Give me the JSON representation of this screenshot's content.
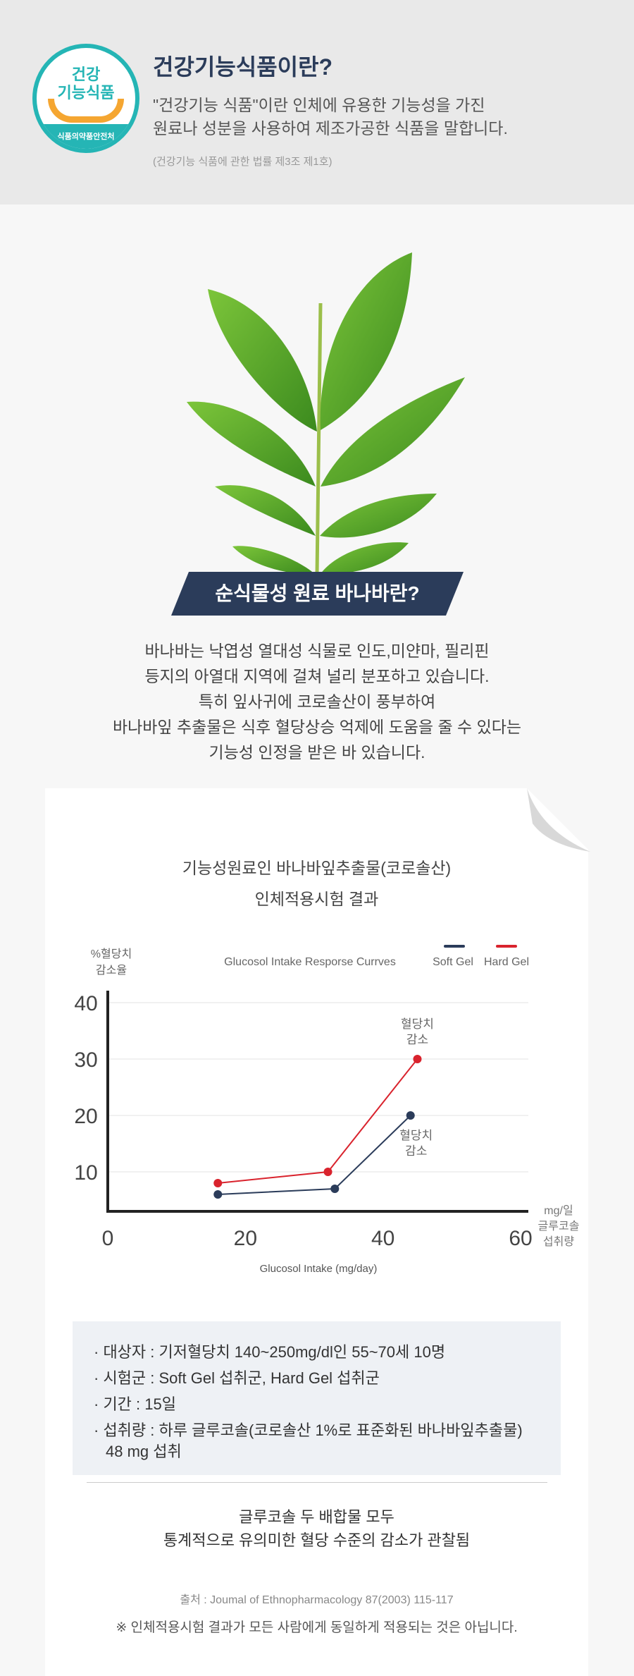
{
  "header": {
    "logo": {
      "line1": "건강",
      "line2": "기능식품",
      "band": "식품의약품안전처"
    },
    "title": "건강기능식품이란?",
    "body": [
      "\"건강기능 식품\"이란 인체에 유용한 기능성을 가진",
      "원료나 성분을 사용하여 제조가공한 식품을 말합니다."
    ],
    "source": "(건강기능 식품에 관한 법률 제3조 제1호)"
  },
  "ingredient": {
    "banner": "순식물성 원료 바나바란?",
    "paragraph": [
      "바나바는  낙엽성 열대성 식물로 인도,미얀마, 필리핀",
      "등지의 아열대 지역에 걸쳐 널리 분포하고 있습니다.",
      "특히 잎사귀에 코로솔산이 풍부하여",
      "바나바잎 추출물은 식후 혈당상승 억제에 도움을 줄 수 있다는",
      "기능성 인정을 받은 바 있습니다."
    ]
  },
  "card": {
    "title": [
      "기능성원료인 바나바잎추출물(코로솔산)",
      "인체적용시험 결과"
    ],
    "info": [
      "· 대상자 : 기저혈당치 140~250mg/dl인 55~70세 10명",
      "· 시험군 : Soft Gel 섭취군, Hard Gel 섭취군",
      "· 기간 : 15일",
      "· 섭취량 : 하루 글루코솔(코로솔산 1%로 표준화된 바나바잎추출물)",
      "48 mg 섭취"
    ],
    "conclusion": [
      "글루코솔 두 배합물 모두",
      "통계적으로 유의미한 혈당 수준의 감소가 관찰됨"
    ],
    "source": "출처 : Joumal of Ethnopharmacology 87(2003) 115-117",
    "disclaimer": "※ 인체적용시험 결과가 모든 사람에게 동일하게 적용되는 것은 아닙니다."
  },
  "colors": {
    "navy": "#2b3c5a",
    "red": "#d9232d",
    "teal": "#25b5b5",
    "orange": "#f5a631"
  },
  "chart_data": {
    "type": "line",
    "title": "Glucosol Intake Resporse Currves",
    "ylabel": [
      "%혈당치",
      "감소율"
    ],
    "xlabel": "Glucosol Intake (mg/day)",
    "xunit": [
      "mg/일",
      "글루코솔",
      "섭취량"
    ],
    "xlim": [
      0,
      60
    ],
    "ylim": [
      3,
      40
    ],
    "xticks": [
      "0",
      "20",
      "40",
      "60"
    ],
    "yticks": [
      "10",
      "20",
      "30",
      "40"
    ],
    "grid": true,
    "legend": "top-right",
    "series": [
      {
        "name": "Soft Gel",
        "color": "#2b3c5a",
        "x": [
          16,
          33,
          44
        ],
        "y": [
          6,
          7,
          20
        ],
        "annotation": [
          "혈당치",
          "감소"
        ]
      },
      {
        "name": "Hard Gel",
        "color": "#d9232d",
        "x": [
          16,
          32,
          45
        ],
        "y": [
          8,
          10,
          30
        ],
        "annotation": [
          "혈당치",
          "감소"
        ]
      }
    ]
  }
}
